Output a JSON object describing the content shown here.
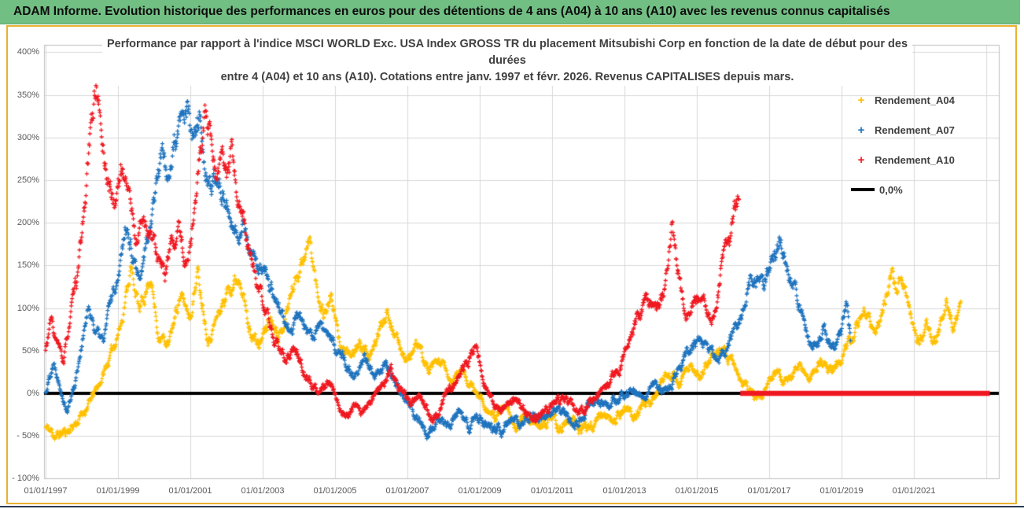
{
  "header": {
    "title": "ADAM Informe. Evolution historique des performances en euros pour des détentions de 4 ans (A04) à 10 ans (A10) avec les revenus connus capitalisés"
  },
  "chart_data": {
    "type": "scatter",
    "marker": "+",
    "title": "Performance par rapport à l'indice MSCI WORLD Exc. USA Index GROSS TR du placement Mitsubishi Corp en fonction de la date de début pour des durées entre 4 (A04) et 10 ans (A10). Cotations entre janv. 1997 et févr. 2026. Revenus CAPITALISES depuis mars.",
    "title_lines": [
      "Performance par rapport à l'indice MSCI WORLD Exc. USA Index GROSS TR  du placement Mitsubishi Corp en fonction de la date de début pour des",
      "durées",
      "entre 4 (A04) et 10 ans (A10). Cotations entre janv. 1997 et févr. 2026. Revenus CAPITALISES depuis mars."
    ],
    "grid": true,
    "legend_position": "right",
    "xlim": [
      1997.0,
      2023.35
    ],
    "ylim": [
      -100,
      400
    ],
    "y_unit": "%",
    "y_ticks": {
      "labels": [
        "400%",
        "350%",
        "300%",
        "250%",
        "200%",
        "150%",
        "100%",
        "50%",
        "0%",
        "- 50%",
        "- 100%"
      ],
      "values": [
        400,
        350,
        300,
        250,
        200,
        150,
        100,
        50,
        0,
        -50,
        -100
      ]
    },
    "x_ticks": {
      "labels": [
        "01/01/1997",
        "01/01/1999",
        "01/01/2001",
        "01/01/2003",
        "01/01/2005",
        "01/01/2007",
        "01/01/2009",
        "01/01/2011",
        "01/01/2013",
        "01/01/2015",
        "01/01/2017",
        "01/01/2019",
        "01/01/2021"
      ],
      "values": [
        1997,
        1999,
        2001,
        2003,
        2005,
        2007,
        2009,
        2011,
        2013,
        2015,
        2017,
        2019,
        2021
      ],
      "gridline_values": [
        1997,
        1999,
        2001,
        2003,
        2005,
        2007,
        2009,
        2011,
        2013,
        2015,
        2017,
        2019,
        2021,
        2023
      ]
    },
    "legend": [
      {
        "label": "Rendement_A04",
        "marker": "+",
        "color": "#FFC000"
      },
      {
        "label": "Rendement_A07",
        "marker": "+",
        "color": "#1E73BE"
      },
      {
        "label": "Rendement_A10",
        "marker": "+",
        "color": "#F01820"
      },
      {
        "label": "0,0%",
        "marker": "line",
        "color": "#000000"
      }
    ],
    "zero_line": {
      "label": "0,0%",
      "value": 0,
      "color": "#000000"
    },
    "red_zero_segment": {
      "series": "Rendement_A10",
      "value": 0,
      "start": 2016.2,
      "end": 2023.1,
      "color": "#F01820"
    },
    "series": [
      {
        "name": "Rendement_A04",
        "color": "#FFC000",
        "anchors": [
          [
            1997.0,
            -40
          ],
          [
            1997.3,
            -50
          ],
          [
            1997.6,
            -44
          ],
          [
            1997.9,
            -32
          ],
          [
            1998.2,
            -12
          ],
          [
            1998.5,
            12
          ],
          [
            1998.8,
            45
          ],
          [
            1999.1,
            85
          ],
          [
            1999.35,
            148
          ],
          [
            1999.6,
            95
          ],
          [
            1999.9,
            140
          ],
          [
            2000.1,
            72
          ],
          [
            2000.4,
            55
          ],
          [
            2000.7,
            115
          ],
          [
            2001.0,
            92
          ],
          [
            2001.2,
            143
          ],
          [
            2001.5,
            65
          ],
          [
            2001.8,
            95
          ],
          [
            2002.1,
            128
          ],
          [
            2002.4,
            140
          ],
          [
            2002.6,
            78
          ],
          [
            2002.9,
            55
          ],
          [
            2003.2,
            90
          ],
          [
            2003.5,
            70
          ],
          [
            2003.8,
            120
          ],
          [
            2004.1,
            160
          ],
          [
            2004.3,
            178
          ],
          [
            2004.5,
            120
          ],
          [
            2004.7,
            95
          ],
          [
            2004.9,
            115
          ],
          [
            2005.1,
            62
          ],
          [
            2005.4,
            40
          ],
          [
            2005.7,
            58
          ],
          [
            2006.0,
            42
          ],
          [
            2006.2,
            70
          ],
          [
            2006.45,
            102
          ],
          [
            2006.7,
            62
          ],
          [
            2007.0,
            40
          ],
          [
            2007.3,
            56
          ],
          [
            2007.6,
            24
          ],
          [
            2007.9,
            38
          ],
          [
            2008.2,
            12
          ],
          [
            2008.5,
            28
          ],
          [
            2008.8,
            5
          ],
          [
            2009.1,
            -8
          ],
          [
            2009.4,
            -30
          ],
          [
            2009.7,
            -18
          ],
          [
            2010.0,
            -36
          ],
          [
            2010.3,
            -26
          ],
          [
            2010.6,
            -40
          ],
          [
            2010.9,
            -30
          ],
          [
            2011.2,
            -42
          ],
          [
            2011.5,
            -30
          ],
          [
            2011.8,
            -44
          ],
          [
            2012.1,
            -36
          ],
          [
            2012.4,
            -24
          ],
          [
            2012.7,
            -32
          ],
          [
            2013.0,
            -18
          ],
          [
            2013.3,
            -26
          ],
          [
            2013.6,
            -12
          ],
          [
            2013.9,
            -2
          ],
          [
            2014.2,
            25
          ],
          [
            2014.5,
            10
          ],
          [
            2014.8,
            32
          ],
          [
            2015.1,
            20
          ],
          [
            2015.4,
            40
          ],
          [
            2015.7,
            55
          ],
          [
            2016.0,
            38
          ],
          [
            2016.3,
            10
          ],
          [
            2016.6,
            -6
          ],
          [
            2016.9,
            5
          ],
          [
            2017.2,
            25
          ],
          [
            2017.5,
            14
          ],
          [
            2017.8,
            30
          ],
          [
            2018.1,
            20
          ],
          [
            2018.4,
            38
          ],
          [
            2018.7,
            26
          ],
          [
            2019.0,
            42
          ],
          [
            2019.3,
            65
          ],
          [
            2019.6,
            95
          ],
          [
            2019.9,
            70
          ],
          [
            2020.1,
            85
          ],
          [
            2020.35,
            150
          ],
          [
            2020.5,
            125
          ],
          [
            2020.65,
            140
          ],
          [
            2020.9,
            95
          ],
          [
            2021.1,
            58
          ],
          [
            2021.4,
            80
          ],
          [
            2021.6,
            60
          ],
          [
            2021.9,
            100
          ],
          [
            2022.1,
            75
          ],
          [
            2022.3,
            98
          ]
        ]
      },
      {
        "name": "Rendement_A07",
        "color": "#1E73BE",
        "anchors": [
          [
            1997.0,
            0
          ],
          [
            1997.2,
            38
          ],
          [
            1997.4,
            12
          ],
          [
            1997.6,
            -18
          ],
          [
            1997.8,
            10
          ],
          [
            1998.0,
            60
          ],
          [
            1998.2,
            100
          ],
          [
            1998.4,
            72
          ],
          [
            1998.6,
            60
          ],
          [
            1998.8,
            110
          ],
          [
            1999.0,
            140
          ],
          [
            1999.2,
            205
          ],
          [
            1999.4,
            160
          ],
          [
            1999.6,
            122
          ],
          [
            1999.8,
            180
          ],
          [
            2000.0,
            230
          ],
          [
            2000.2,
            288
          ],
          [
            2000.35,
            255
          ],
          [
            2000.5,
            280
          ],
          [
            2000.7,
            308
          ],
          [
            2000.9,
            335
          ],
          [
            2001.1,
            288
          ],
          [
            2001.25,
            330
          ],
          [
            2001.4,
            268
          ],
          [
            2001.6,
            228
          ],
          [
            2001.8,
            255
          ],
          [
            2002.0,
            222
          ],
          [
            2002.2,
            180
          ],
          [
            2002.45,
            205
          ],
          [
            2002.7,
            160
          ],
          [
            2003.0,
            140
          ],
          [
            2003.3,
            118
          ],
          [
            2003.55,
            88
          ],
          [
            2003.8,
            70
          ],
          [
            2004.0,
            95
          ],
          [
            2004.3,
            65
          ],
          [
            2004.6,
            80
          ],
          [
            2004.9,
            58
          ],
          [
            2005.2,
            42
          ],
          [
            2005.5,
            22
          ],
          [
            2005.8,
            45
          ],
          [
            2006.1,
            15
          ],
          [
            2006.4,
            32
          ],
          [
            2006.7,
            5
          ],
          [
            2007.0,
            -12
          ],
          [
            2007.3,
            -30
          ],
          [
            2007.55,
            -48
          ],
          [
            2007.8,
            -28
          ],
          [
            2008.1,
            -45
          ],
          [
            2008.4,
            -22
          ],
          [
            2008.7,
            -40
          ],
          [
            2009.0,
            -25
          ],
          [
            2009.3,
            -35
          ],
          [
            2009.6,
            -42
          ],
          [
            2009.9,
            -28
          ],
          [
            2010.2,
            -35
          ],
          [
            2010.5,
            -25
          ],
          [
            2010.8,
            -32
          ],
          [
            2011.1,
            -20
          ],
          [
            2011.4,
            -28
          ],
          [
            2011.7,
            -35
          ],
          [
            2012.0,
            -15
          ],
          [
            2012.3,
            -8
          ],
          [
            2012.6,
            -15
          ],
          [
            2012.9,
            -5
          ],
          [
            2013.2,
            5
          ],
          [
            2013.5,
            -3
          ],
          [
            2013.8,
            8
          ],
          [
            2014.1,
            2
          ],
          [
            2014.4,
            20
          ],
          [
            2014.7,
            45
          ],
          [
            2015.0,
            65
          ],
          [
            2015.3,
            50
          ],
          [
            2015.6,
            38
          ],
          [
            2015.9,
            60
          ],
          [
            2016.2,
            85
          ],
          [
            2016.5,
            140
          ],
          [
            2016.8,
            120
          ],
          [
            2017.0,
            150
          ],
          [
            2017.3,
            175
          ],
          [
            2017.5,
            148
          ],
          [
            2017.8,
            108
          ],
          [
            2018.0,
            68
          ],
          [
            2018.2,
            52
          ],
          [
            2018.5,
            70
          ],
          [
            2018.8,
            50
          ],
          [
            2019.0,
            75
          ],
          [
            2019.15,
            110
          ],
          [
            2019.25,
            65
          ]
        ]
      },
      {
        "name": "Rendement_A10",
        "color": "#F01820",
        "anchors": [
          [
            1997.0,
            50
          ],
          [
            1997.15,
            85
          ],
          [
            1997.3,
            60
          ],
          [
            1997.5,
            35
          ],
          [
            1997.7,
            95
          ],
          [
            1997.9,
            140
          ],
          [
            1998.1,
            230
          ],
          [
            1998.3,
            330
          ],
          [
            1998.4,
            365
          ],
          [
            1998.55,
            300
          ],
          [
            1998.7,
            255
          ],
          [
            1998.9,
            220
          ],
          [
            1999.1,
            265
          ],
          [
            1999.3,
            240
          ],
          [
            1999.5,
            175
          ],
          [
            1999.7,
            210
          ],
          [
            1999.9,
            185
          ],
          [
            2000.1,
            160
          ],
          [
            2000.3,
            135
          ],
          [
            2000.5,
            175
          ],
          [
            2000.7,
            190
          ],
          [
            2000.9,
            150
          ],
          [
            2001.1,
            210
          ],
          [
            2001.25,
            270
          ],
          [
            2001.4,
            330
          ],
          [
            2001.55,
            290
          ],
          [
            2001.7,
            245
          ],
          [
            2001.85,
            275
          ],
          [
            2002.0,
            250
          ],
          [
            2002.15,
            278
          ],
          [
            2002.3,
            235
          ],
          [
            2002.5,
            190
          ],
          [
            2002.7,
            155
          ],
          [
            2002.9,
            120
          ],
          [
            2003.1,
            90
          ],
          [
            2003.35,
            60
          ],
          [
            2003.6,
            40
          ],
          [
            2003.85,
            55
          ],
          [
            2004.1,
            30
          ],
          [
            2004.35,
            12
          ],
          [
            2004.6,
            3
          ],
          [
            2004.85,
            10
          ],
          [
            2005.05,
            -8
          ],
          [
            2005.3,
            -28
          ],
          [
            2005.55,
            -12
          ],
          [
            2005.8,
            -24
          ],
          [
            2006.05,
            -8
          ],
          [
            2006.3,
            10
          ],
          [
            2006.55,
            28
          ],
          [
            2006.8,
            8
          ],
          [
            2007.05,
            -10
          ],
          [
            2007.3,
            -5
          ],
          [
            2007.5,
            -15
          ],
          [
            2007.65,
            -30
          ],
          [
            2007.9,
            -18
          ],
          [
            2008.15,
            5
          ],
          [
            2008.4,
            20
          ],
          [
            2008.65,
            35
          ],
          [
            2008.9,
            55
          ],
          [
            2009.1,
            15
          ],
          [
            2009.35,
            -12
          ],
          [
            2009.6,
            -20
          ],
          [
            2009.85,
            -8
          ],
          [
            2010.1,
            -14
          ],
          [
            2010.35,
            -25
          ],
          [
            2010.6,
            -30
          ],
          [
            2010.85,
            -18
          ],
          [
            2011.1,
            -10
          ],
          [
            2011.35,
            -5
          ],
          [
            2011.6,
            -15
          ],
          [
            2011.85,
            -20
          ],
          [
            2012.1,
            -8
          ],
          [
            2012.35,
            5
          ],
          [
            2012.6,
            15
          ],
          [
            2012.85,
            25
          ],
          [
            2013.1,
            60
          ],
          [
            2013.35,
            90
          ],
          [
            2013.6,
            110
          ],
          [
            2013.85,
            100
          ],
          [
            2014.1,
            120
          ],
          [
            2014.3,
            200
          ],
          [
            2014.45,
            145
          ],
          [
            2014.6,
            110
          ],
          [
            2014.8,
            95
          ],
          [
            2015.0,
            115
          ],
          [
            2015.2,
            100
          ],
          [
            2015.4,
            90
          ],
          [
            2015.6,
            125
          ],
          [
            2015.75,
            160
          ],
          [
            2015.9,
            180
          ],
          [
            2016.05,
            215
          ],
          [
            2016.17,
            237
          ]
        ]
      }
    ],
    "colors": {
      "banner_green": "#72BF84",
      "frame_gold": "#EAB02F",
      "gridline": "#D9D9D9",
      "axis_line": "#BFBFBF",
      "tick_text": "#595959",
      "title_text": "#404040"
    }
  }
}
